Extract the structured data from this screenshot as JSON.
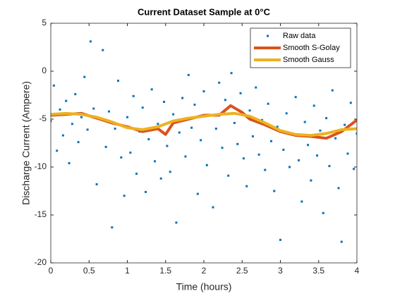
{
  "chart_data": {
    "type": "scatter",
    "title": "Current Dataset Sample at 0°C",
    "xlabel": "Time (hours)",
    "ylabel": "Discharge Current (Ampere)",
    "xlim": [
      0,
      4
    ],
    "ylim": [
      -20,
      5
    ],
    "xticks": [
      0,
      0.5,
      1,
      1.5,
      2,
      2.5,
      3,
      3.5,
      4
    ],
    "yticks": [
      -20,
      -15,
      -10,
      -5,
      0,
      5
    ],
    "legend": "northeast",
    "series": [
      {
        "name": "Raw data",
        "type": "scatter",
        "color": "#0072bd",
        "x": [
          0,
          0.04,
          0.08,
          0.12,
          0.16,
          0.2,
          0.24,
          0.28,
          0.32,
          0.36,
          0.4,
          0.44,
          0.48,
          0.52,
          0.56,
          0.6,
          0.64,
          0.68,
          0.72,
          0.76,
          0.8,
          0.84,
          0.88,
          0.92,
          0.96,
          1.0,
          1.04,
          1.08,
          1.12,
          1.16,
          1.2,
          1.24,
          1.28,
          1.32,
          1.36,
          1.4,
          1.44,
          1.48,
          1.52,
          1.56,
          1.6,
          1.64,
          1.68,
          1.72,
          1.76,
          1.8,
          1.84,
          1.88,
          1.92,
          1.96,
          2.0,
          2.04,
          2.08,
          2.12,
          2.16,
          2.2,
          2.24,
          2.28,
          2.32,
          2.36,
          2.4,
          2.44,
          2.48,
          2.52,
          2.56,
          2.6,
          2.64,
          2.68,
          2.72,
          2.76,
          2.8,
          2.84,
          2.88,
          2.92,
          2.96,
          3.0,
          3.04,
          3.08,
          3.12,
          3.16,
          3.2,
          3.24,
          3.28,
          3.32,
          3.36,
          3.4,
          3.44,
          3.48,
          3.52,
          3.56,
          3.6,
          3.64,
          3.68,
          3.72,
          3.76,
          3.8,
          3.84,
          3.88,
          3.92,
          3.96,
          4.0
        ],
        "values": [
          -5.2,
          -1.5,
          -8.3,
          -4.0,
          -6.7,
          -3.1,
          -9.6,
          -5.5,
          -2.4,
          -7.4,
          -4.8,
          -0.6,
          -6.1,
          3.1,
          -3.9,
          -11.8,
          -5.0,
          2.2,
          -7.9,
          -4.2,
          -16.3,
          -6.0,
          -1.0,
          -9.0,
          -13.0,
          -4.8,
          -8.5,
          -2.6,
          -10.7,
          -6.3,
          -3.8,
          -12.6,
          -7.1,
          -1.9,
          -9.4,
          -5.5,
          -11.2,
          -3.2,
          -7.8,
          -10.5,
          -4.5,
          -15.8,
          -6.4,
          -2.8,
          -8.9,
          -0.4,
          -5.9,
          -3.5,
          -12.8,
          -7.2,
          -2.1,
          -9.8,
          -4.6,
          -14.2,
          -6.0,
          -1.2,
          -8.0,
          -3.0,
          -10.9,
          -0.2,
          -5.4,
          -7.6,
          -2.3,
          -9.1,
          -12.0,
          -4.1,
          -6.8,
          -1.7,
          -8.7,
          -5.1,
          -10.3,
          -3.4,
          -7.3,
          -12.5,
          -5.8,
          -17.6,
          -8.2,
          -4.4,
          -10.0,
          -6.6,
          -2.7,
          -9.3,
          -13.6,
          -5.3,
          -7.7,
          -11.4,
          -3.6,
          -8.8,
          -6.2,
          -14.8,
          -4.9,
          -9.9,
          -2.0,
          -7.0,
          -12.2,
          -17.8,
          -5.6,
          -8.6,
          -3.3,
          -10.2,
          -6.5
        ]
      },
      {
        "name": "Smooth S-Golay",
        "type": "line",
        "color": "#d95319",
        "x": [
          0,
          0.2,
          0.4,
          0.6,
          0.8,
          1.0,
          1.2,
          1.4,
          1.5,
          1.6,
          1.8,
          2.0,
          2.2,
          2.35,
          2.5,
          2.6,
          2.8,
          3.0,
          3.2,
          3.4,
          3.6,
          3.8,
          4.0
        ],
        "values": [
          -4.6,
          -4.5,
          -4.4,
          -4.9,
          -5.4,
          -5.8,
          -6.3,
          -6.0,
          -6.6,
          -5.4,
          -5.0,
          -4.6,
          -4.6,
          -3.6,
          -4.3,
          -5.0,
          -5.6,
          -6.3,
          -6.7,
          -6.8,
          -7.0,
          -6.3,
          -5.1
        ]
      },
      {
        "name": "Smooth Gauss",
        "type": "line",
        "color": "#edb120",
        "x": [
          0,
          0.2,
          0.4,
          0.6,
          0.8,
          1.0,
          1.2,
          1.4,
          1.6,
          1.8,
          2.0,
          2.2,
          2.4,
          2.6,
          2.8,
          3.0,
          3.2,
          3.4,
          3.6,
          3.8,
          4.0
        ],
        "values": [
          -4.5,
          -4.4,
          -4.5,
          -4.8,
          -5.3,
          -5.9,
          -6.1,
          -5.8,
          -5.2,
          -4.9,
          -4.7,
          -4.5,
          -4.4,
          -4.7,
          -5.4,
          -6.2,
          -6.6,
          -6.7,
          -6.5,
          -6.1,
          -6.0
        ]
      }
    ]
  }
}
